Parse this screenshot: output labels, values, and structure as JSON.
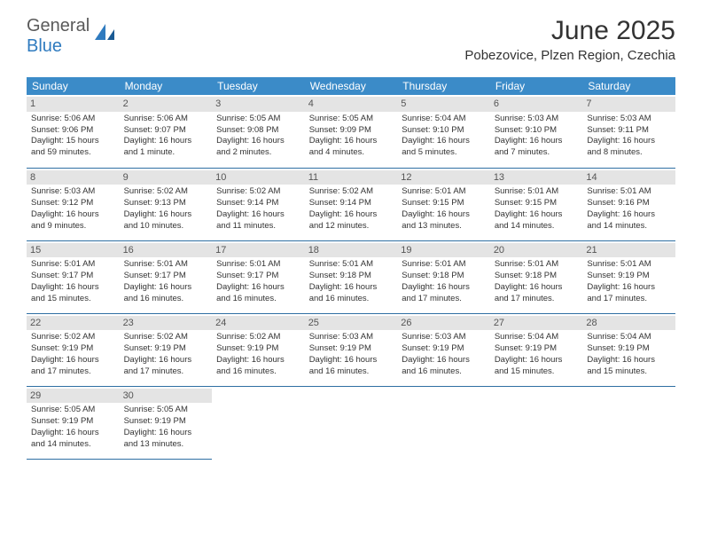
{
  "logo": {
    "text1": "General",
    "text2": "Blue"
  },
  "title": "June 2025",
  "location": "Pobezovice, Plzen Region, Czechia",
  "colors": {
    "header_bg": "#3b8bc8",
    "header_text": "#ffffff",
    "daynum_bg": "#e4e4e4",
    "border": "#2f6fa3",
    "logo_gray": "#5a5a5a",
    "logo_blue": "#2f7bbf",
    "body_text": "#333333"
  },
  "day_headers": [
    "Sunday",
    "Monday",
    "Tuesday",
    "Wednesday",
    "Thursday",
    "Friday",
    "Saturday"
  ],
  "days": [
    {
      "n": 1,
      "sunrise": "5:06 AM",
      "sunset": "9:06 PM",
      "daylight": "15 hours and 59 minutes."
    },
    {
      "n": 2,
      "sunrise": "5:06 AM",
      "sunset": "9:07 PM",
      "daylight": "16 hours and 1 minute."
    },
    {
      "n": 3,
      "sunrise": "5:05 AM",
      "sunset": "9:08 PM",
      "daylight": "16 hours and 2 minutes."
    },
    {
      "n": 4,
      "sunrise": "5:05 AM",
      "sunset": "9:09 PM",
      "daylight": "16 hours and 4 minutes."
    },
    {
      "n": 5,
      "sunrise": "5:04 AM",
      "sunset": "9:10 PM",
      "daylight": "16 hours and 5 minutes."
    },
    {
      "n": 6,
      "sunrise": "5:03 AM",
      "sunset": "9:10 PM",
      "daylight": "16 hours and 7 minutes."
    },
    {
      "n": 7,
      "sunrise": "5:03 AM",
      "sunset": "9:11 PM",
      "daylight": "16 hours and 8 minutes."
    },
    {
      "n": 8,
      "sunrise": "5:03 AM",
      "sunset": "9:12 PM",
      "daylight": "16 hours and 9 minutes."
    },
    {
      "n": 9,
      "sunrise": "5:02 AM",
      "sunset": "9:13 PM",
      "daylight": "16 hours and 10 minutes."
    },
    {
      "n": 10,
      "sunrise": "5:02 AM",
      "sunset": "9:14 PM",
      "daylight": "16 hours and 11 minutes."
    },
    {
      "n": 11,
      "sunrise": "5:02 AM",
      "sunset": "9:14 PM",
      "daylight": "16 hours and 12 minutes."
    },
    {
      "n": 12,
      "sunrise": "5:01 AM",
      "sunset": "9:15 PM",
      "daylight": "16 hours and 13 minutes."
    },
    {
      "n": 13,
      "sunrise": "5:01 AM",
      "sunset": "9:15 PM",
      "daylight": "16 hours and 14 minutes."
    },
    {
      "n": 14,
      "sunrise": "5:01 AM",
      "sunset": "9:16 PM",
      "daylight": "16 hours and 14 minutes."
    },
    {
      "n": 15,
      "sunrise": "5:01 AM",
      "sunset": "9:17 PM",
      "daylight": "16 hours and 15 minutes."
    },
    {
      "n": 16,
      "sunrise": "5:01 AM",
      "sunset": "9:17 PM",
      "daylight": "16 hours and 16 minutes."
    },
    {
      "n": 17,
      "sunrise": "5:01 AM",
      "sunset": "9:17 PM",
      "daylight": "16 hours and 16 minutes."
    },
    {
      "n": 18,
      "sunrise": "5:01 AM",
      "sunset": "9:18 PM",
      "daylight": "16 hours and 16 minutes."
    },
    {
      "n": 19,
      "sunrise": "5:01 AM",
      "sunset": "9:18 PM",
      "daylight": "16 hours and 17 minutes."
    },
    {
      "n": 20,
      "sunrise": "5:01 AM",
      "sunset": "9:18 PM",
      "daylight": "16 hours and 17 minutes."
    },
    {
      "n": 21,
      "sunrise": "5:01 AM",
      "sunset": "9:19 PM",
      "daylight": "16 hours and 17 minutes."
    },
    {
      "n": 22,
      "sunrise": "5:02 AM",
      "sunset": "9:19 PM",
      "daylight": "16 hours and 17 minutes."
    },
    {
      "n": 23,
      "sunrise": "5:02 AM",
      "sunset": "9:19 PM",
      "daylight": "16 hours and 17 minutes."
    },
    {
      "n": 24,
      "sunrise": "5:02 AM",
      "sunset": "9:19 PM",
      "daylight": "16 hours and 16 minutes."
    },
    {
      "n": 25,
      "sunrise": "5:03 AM",
      "sunset": "9:19 PM",
      "daylight": "16 hours and 16 minutes."
    },
    {
      "n": 26,
      "sunrise": "5:03 AM",
      "sunset": "9:19 PM",
      "daylight": "16 hours and 16 minutes."
    },
    {
      "n": 27,
      "sunrise": "5:04 AM",
      "sunset": "9:19 PM",
      "daylight": "16 hours and 15 minutes."
    },
    {
      "n": 28,
      "sunrise": "5:04 AM",
      "sunset": "9:19 PM",
      "daylight": "16 hours and 15 minutes."
    },
    {
      "n": 29,
      "sunrise": "5:05 AM",
      "sunset": "9:19 PM",
      "daylight": "16 hours and 14 minutes."
    },
    {
      "n": 30,
      "sunrise": "5:05 AM",
      "sunset": "9:19 PM",
      "daylight": "16 hours and 13 minutes."
    }
  ],
  "labels": {
    "sunrise": "Sunrise:",
    "sunset": "Sunset:",
    "daylight": "Daylight:"
  }
}
